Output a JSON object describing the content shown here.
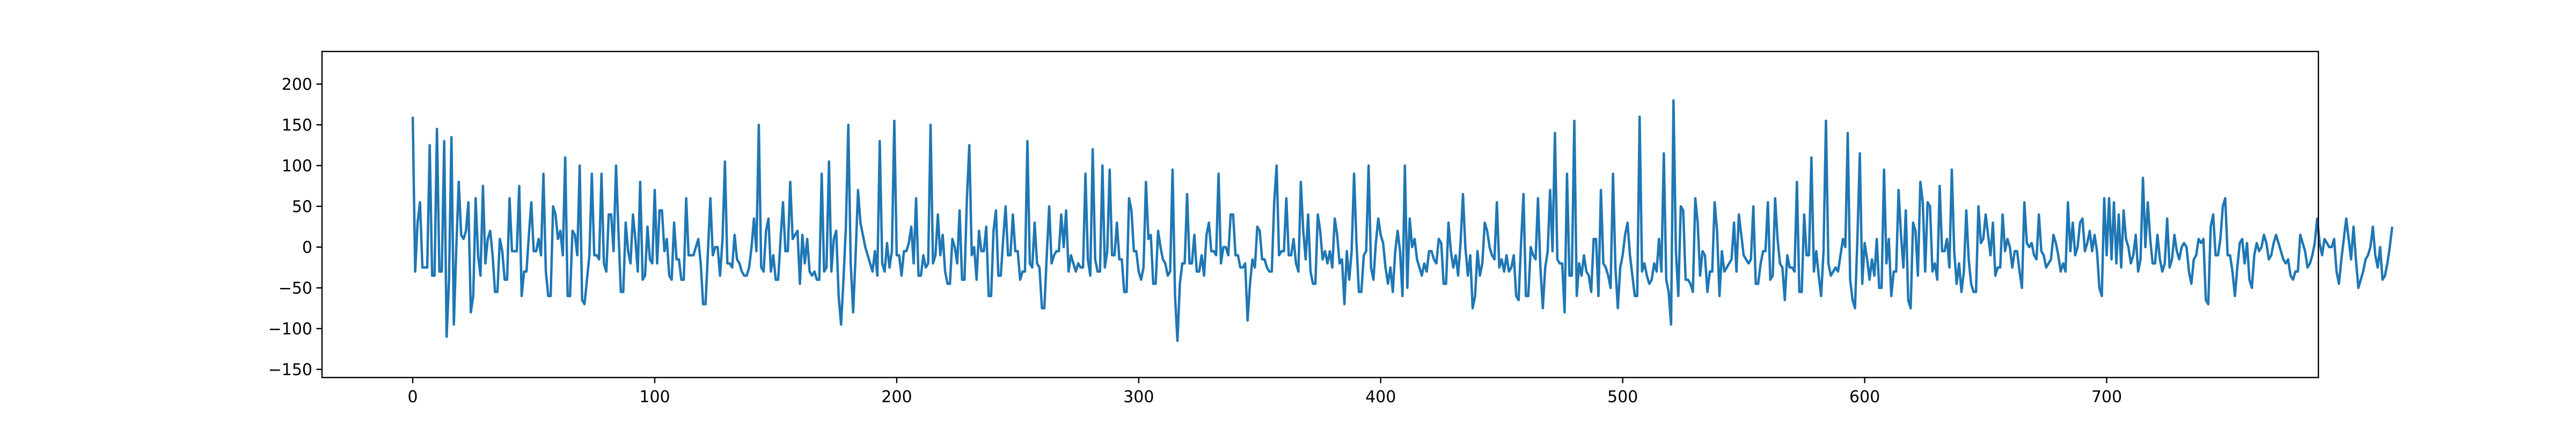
{
  "chart_data": {
    "type": "line",
    "title": "",
    "xlabel": "",
    "ylabel": "",
    "xlim": [
      -37.5,
      787.5
    ],
    "ylim": [
      -160,
      240
    ],
    "x_ticks": [
      0,
      100,
      200,
      300,
      400,
      500,
      600,
      700
    ],
    "y_ticks": [
      -150,
      -100,
      -50,
      0,
      50,
      100,
      150,
      200
    ],
    "grid": false,
    "legend": "none",
    "colors": {
      "line": "#1f77b4",
      "axes": "#000000",
      "background": "#ffffff"
    },
    "series": [
      {
        "x_start": 0,
        "x_step": 1,
        "values": [
          160,
          -30,
          30,
          55,
          -25,
          -25,
          -25,
          125,
          -35,
          -35,
          145,
          -30,
          -30,
          130,
          -110,
          -40,
          135,
          -95,
          0,
          80,
          15,
          10,
          20,
          55,
          -80,
          -60,
          60,
          -10,
          -35,
          75,
          -20,
          10,
          20,
          -10,
          -55,
          -55,
          10,
          -5,
          -40,
          -40,
          60,
          -5,
          -5,
          -5,
          75,
          -60,
          -30,
          -30,
          15,
          55,
          -5,
          -5,
          10,
          -10,
          90,
          -30,
          -60,
          -60,
          50,
          40,
          10,
          20,
          -10,
          110,
          -60,
          -60,
          20,
          15,
          -10,
          100,
          -65,
          -70,
          -40,
          -10,
          90,
          -10,
          -10,
          -15,
          90,
          -20,
          -30,
          40,
          40,
          -5,
          100,
          20,
          -55,
          -55,
          30,
          -5,
          -20,
          40,
          10,
          -30,
          80,
          -40,
          -35,
          25,
          -15,
          -20,
          70,
          -20,
          45,
          45,
          -5,
          10,
          -35,
          -40,
          30,
          -15,
          -15,
          -40,
          -40,
          60,
          -10,
          -10,
          -10,
          0,
          10,
          -20,
          -70,
          -70,
          -5,
          60,
          -10,
          0,
          0,
          -35,
          10,
          105,
          -20,
          -20,
          -25,
          15,
          -15,
          -20,
          -30,
          -35,
          -35,
          -25,
          0,
          35,
          -5,
          150,
          -25,
          -30,
          20,
          35,
          -30,
          -10,
          -40,
          -40,
          10,
          55,
          -5,
          -5,
          80,
          10,
          15,
          20,
          -45,
          15,
          -20,
          10,
          -30,
          -35,
          -30,
          -40,
          -40,
          90,
          -30,
          -25,
          105,
          -30,
          10,
          20,
          -60,
          -95,
          -40,
          25,
          150,
          -20,
          -80,
          -10,
          70,
          30,
          15,
          0,
          -10,
          -20,
          -30,
          -5,
          -35,
          130,
          -20,
          -30,
          5,
          -25,
          -5,
          155,
          -10,
          -10,
          -35,
          -5,
          -5,
          5,
          25,
          -20,
          60,
          -35,
          -35,
          -10,
          -25,
          -20,
          150,
          -20,
          -10,
          40,
          -10,
          15,
          -30,
          -45,
          -45,
          10,
          0,
          -20,
          45,
          -40,
          -40,
          60,
          125,
          -10,
          0,
          -40,
          20,
          -5,
          -5,
          25,
          -60,
          -60,
          20,
          45,
          -35,
          -35,
          10,
          50,
          -10,
          -10,
          40,
          -5,
          -5,
          -40,
          -30,
          -30,
          130,
          -20,
          -25,
          30,
          -20,
          -25,
          -75,
          -75,
          -10,
          50,
          -20,
          -10,
          -5,
          -5,
          40,
          0,
          45,
          -30,
          -10,
          -20,
          -30,
          -20,
          -25,
          -25,
          90,
          -15,
          -35,
          120,
          -15,
          -30,
          -30,
          100,
          -25,
          -5,
          95,
          -10,
          -10,
          30,
          -15,
          -15,
          -55,
          -55,
          60,
          45,
          -5,
          -5,
          -30,
          -40,
          -25,
          80,
          10,
          15,
          -45,
          -45,
          20,
          0,
          -15,
          -20,
          -35,
          -30,
          95,
          -60,
          -115,
          -45,
          -20,
          -20,
          65,
          -20,
          -20,
          15,
          -30,
          -30,
          -10,
          -35,
          15,
          30,
          -5,
          -5,
          -10,
          90,
          -20,
          0,
          0,
          -10,
          40,
          40,
          -10,
          -10,
          -25,
          -25,
          -20,
          -90,
          -45,
          -15,
          -25,
          25,
          20,
          -15,
          -15,
          -25,
          -30,
          -30,
          55,
          100,
          -10,
          -5,
          -5,
          60,
          -10,
          -10,
          10,
          -20,
          -30,
          80,
          20,
          -15,
          40,
          -30,
          -45,
          -45,
          40,
          20,
          -15,
          -5,
          -20,
          -5,
          -25,
          35,
          15,
          -20,
          -15,
          -70,
          -5,
          -40,
          -5,
          90,
          5,
          -55,
          -55,
          -10,
          -5,
          100,
          -25,
          -40,
          5,
          35,
          15,
          5,
          -25,
          -45,
          -25,
          -55,
          -5,
          20,
          -5,
          -60,
          100,
          -50,
          35,
          0,
          10,
          -15,
          -25,
          -35,
          -20,
          -30,
          -5,
          -5,
          -15,
          -20,
          10,
          5,
          -45,
          -45,
          30,
          -5,
          -25,
          -10,
          -35,
          5,
          65,
          0,
          -35,
          -10,
          -75,
          -60,
          -5,
          -35,
          -20,
          30,
          20,
          0,
          -10,
          -15,
          55,
          -25,
          -15,
          -30,
          -10,
          -30,
          -25,
          -10,
          -60,
          -65,
          5,
          65,
          -60,
          -60,
          0,
          -10,
          -15,
          60,
          -25,
          -75,
          -25,
          -5,
          70,
          -5,
          140,
          -15,
          -20,
          -20,
          -80,
          90,
          -35,
          -35,
          155,
          -60,
          -20,
          -35,
          -10,
          -30,
          -35,
          -55,
          10,
          10,
          -60,
          70,
          -20,
          -25,
          -35,
          -50,
          90,
          -25,
          -75,
          -25,
          -10,
          15,
          30,
          -10,
          -35,
          -60,
          -60,
          160,
          -30,
          -20,
          -35,
          -45,
          -40,
          -20,
          -30,
          10,
          -30,
          115,
          -40,
          -55,
          -95,
          180,
          -5,
          -60,
          50,
          45,
          -40,
          -40,
          -45,
          -55,
          60,
          30,
          -35,
          -5,
          -10,
          -55,
          -30,
          -30,
          55,
          20,
          -60,
          -5,
          -30,
          -25,
          -20,
          -15,
          30,
          -30,
          40,
          15,
          -10,
          -15,
          -20,
          -15,
          50,
          -45,
          -45,
          -20,
          -5,
          -5,
          55,
          -40,
          -35,
          60,
          10,
          -20,
          -25,
          -65,
          -10,
          -25,
          -25,
          -30,
          80,
          -55,
          -55,
          40,
          -10,
          -10,
          110,
          -30,
          -5,
          -35,
          -60,
          -5,
          155,
          -20,
          -35,
          -30,
          -25,
          -30,
          -10,
          10,
          0,
          140,
          -40,
          -65,
          -75,
          10,
          115,
          -45,
          5,
          -15,
          -40,
          -15,
          -35,
          10,
          -50,
          -50,
          95,
          -20,
          10,
          -60,
          -30,
          -30,
          70,
          15,
          -25,
          45,
          -65,
          -75,
          30,
          20,
          -35,
          80,
          55,
          -30,
          55,
          50,
          -30,
          -20,
          -40,
          75,
          -5,
          -5,
          10,
          -25,
          95,
          -5,
          -45,
          -20,
          -55,
          -30,
          45,
          -15,
          -45,
          -55,
          -55,
          50,
          5,
          10,
          40,
          15,
          -10,
          30,
          -35,
          -25,
          -25,
          40,
          -5,
          10,
          0,
          -25,
          -5,
          -5,
          -30,
          -50,
          55,
          5,
          0,
          5,
          -10,
          -15,
          40,
          -5,
          -10,
          -25,
          -20,
          -15,
          15,
          5,
          -10,
          -30,
          -20,
          -30,
          55,
          -5,
          30,
          -10,
          0,
          30,
          35,
          -5,
          5,
          20,
          -5,
          15,
          -5,
          -50,
          -60,
          60,
          -10,
          60,
          -15,
          55,
          -20,
          40,
          -25,
          45,
          10,
          0,
          -20,
          -10,
          15,
          -30,
          -15,
          85,
          0,
          55,
          10,
          -20,
          -20,
          15,
          -15,
          -30,
          -20,
          35,
          -25,
          -15,
          15,
          -5,
          -15,
          0,
          5,
          0,
          -30,
          -45,
          -15,
          -10,
          10,
          5,
          10,
          -65,
          -70,
          25,
          40,
          -10,
          -10,
          10,
          50,
          60,
          -10,
          -10,
          -30,
          -60,
          -25,
          5,
          10,
          -20,
          5,
          -40,
          -50,
          -10,
          5,
          -5,
          0,
          15,
          5,
          -15,
          -10,
          5,
          15,
          5,
          -5,
          -15,
          -20,
          -15,
          -35,
          -40,
          -30,
          -30,
          15,
          5,
          -5,
          -25,
          -20,
          -10,
          5,
          35,
          5,
          -10,
          10,
          5,
          0,
          0,
          10,
          -30,
          -45,
          -15,
          10,
          35,
          10,
          -15,
          25,
          -15,
          -50,
          -40,
          -30,
          -15,
          -10,
          0,
          25,
          -10,
          -25,
          0,
          -40,
          -35,
          -20,
          0,
          25
        ]
      }
    ]
  }
}
